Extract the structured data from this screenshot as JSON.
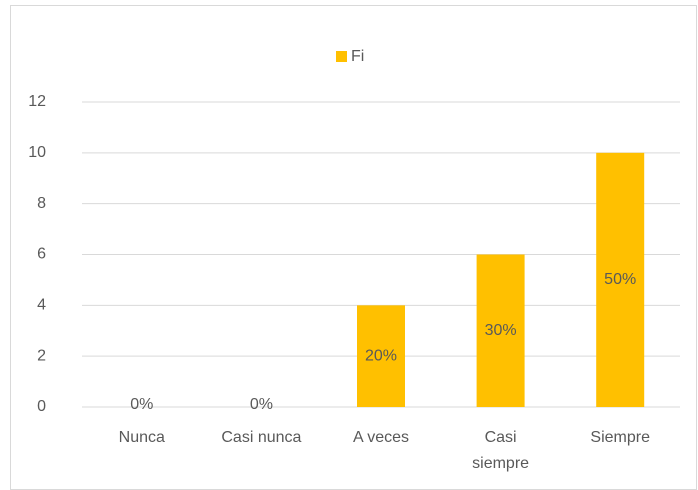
{
  "chart_data": {
    "type": "bar",
    "legend": "Fi",
    "categories": [
      "Nunca",
      "Casi nunca",
      "A veces",
      "Casi siempre",
      "Siempre"
    ],
    "values": [
      0,
      0,
      4,
      6,
      10
    ],
    "data_labels": [
      "0%",
      "0%",
      "20%",
      "30%",
      "50%"
    ],
    "color": "#ffc000",
    "ylim": [
      0,
      12
    ],
    "yticks": [
      0,
      2,
      4,
      6,
      8,
      10,
      12
    ],
    "grid": true,
    "legend_position": "top"
  }
}
